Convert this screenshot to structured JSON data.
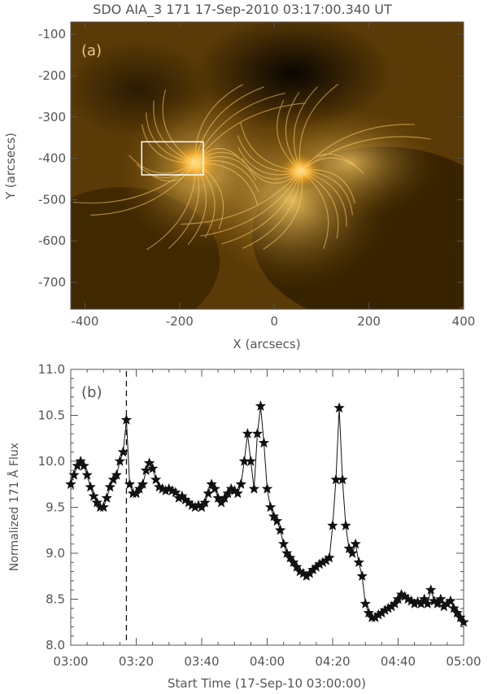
{
  "panel_a": {
    "title": "SDO AIA_3 171 17-Sep-2010 03:17:00.340 UT",
    "label": "(a)",
    "chart_data": {
      "type": "heatmap",
      "image": "solar EUV AIA 171 Å active region, orange colormap",
      "xlabel": "X (arcsecs)",
      "ylabel": "Y (arcsecs)",
      "xlim": [
        -430,
        400
      ],
      "ylim": [
        -765,
        -70
      ],
      "xticks": [
        -400,
        -200,
        0,
        200,
        400
      ],
      "yticks": [
        -100,
        -200,
        -300,
        -400,
        -500,
        -600,
        -700
      ],
      "box": {
        "x": [
          -280,
          -150
        ],
        "y": [
          -440,
          -360
        ]
      }
    },
    "colors": {
      "dark": "#0c0700",
      "mid": "#7a4d00",
      "bright": "#ffc24a",
      "box": "#ffffff"
    }
  },
  "panel_b": {
    "label": "(b)",
    "chart_data": {
      "type": "scatter",
      "marker": "star",
      "xlabel": "Start Time (17-Sep-10 03:00:00)",
      "ylabel": "Normalized 171 Å Flux",
      "xlim": [
        "03:00",
        "05:00"
      ],
      "ylim": [
        8.0,
        11.0
      ],
      "xticks": [
        "03:00",
        "03:20",
        "03:40",
        "04:00",
        "04:20",
        "04:40",
        "05:00"
      ],
      "yticks": [
        "8.0",
        "8.5",
        "9.0",
        "9.5",
        "10.0",
        "10.5",
        "11.0"
      ],
      "vline": "03:17",
      "x": [
        "03:00",
        "03:01",
        "03:02",
        "03:03",
        "03:04",
        "03:05",
        "03:06",
        "03:07",
        "03:08",
        "03:09",
        "03:10",
        "03:11",
        "03:12",
        "03:13",
        "03:14",
        "03:15",
        "03:16",
        "03:17",
        "03:18",
        "03:19",
        "03:20",
        "03:21",
        "03:22",
        "03:23",
        "03:24",
        "03:25",
        "03:26",
        "03:27",
        "03:28",
        "03:29",
        "03:30",
        "03:31",
        "03:32",
        "03:33",
        "03:34",
        "03:35",
        "03:36",
        "03:37",
        "03:38",
        "03:39",
        "03:40",
        "03:41",
        "03:42",
        "03:43",
        "03:44",
        "03:45",
        "03:46",
        "03:47",
        "03:48",
        "03:49",
        "03:50",
        "03:51",
        "03:52",
        "03:53",
        "03:54",
        "03:55",
        "03:56",
        "03:57",
        "03:58",
        "03:59",
        "04:00",
        "04:01",
        "04:02",
        "04:03",
        "04:04",
        "04:05",
        "04:06",
        "04:07",
        "04:08",
        "04:09",
        "04:10",
        "04:11",
        "04:12",
        "04:13",
        "04:14",
        "04:15",
        "04:16",
        "04:17",
        "04:18",
        "04:19",
        "04:20",
        "04:21",
        "04:22",
        "04:23",
        "04:24",
        "04:25",
        "04:26",
        "04:27",
        "04:28",
        "04:29",
        "04:30",
        "04:31",
        "04:32",
        "04:33",
        "04:34",
        "04:35",
        "04:36",
        "04:37",
        "04:38",
        "04:39",
        "04:40",
        "04:41",
        "04:42",
        "04:43",
        "04:44",
        "04:45",
        "04:46",
        "04:47",
        "04:48",
        "04:49",
        "04:50",
        "04:51",
        "04:52",
        "04:53",
        "04:54",
        "04:55",
        "04:56",
        "04:57",
        "04:58",
        "04:59",
        "05:00"
      ],
      "y": [
        9.75,
        9.85,
        9.95,
        10.0,
        9.95,
        9.85,
        9.72,
        9.62,
        9.55,
        9.5,
        9.5,
        9.6,
        9.72,
        9.8,
        9.85,
        10.0,
        10.1,
        10.45,
        9.75,
        9.65,
        9.65,
        9.7,
        9.75,
        9.9,
        9.98,
        9.92,
        9.8,
        9.72,
        9.7,
        9.68,
        9.7,
        9.68,
        9.66,
        9.6,
        9.62,
        9.58,
        9.55,
        9.52,
        9.5,
        9.52,
        9.5,
        9.55,
        9.65,
        9.75,
        9.7,
        9.6,
        9.55,
        9.6,
        9.65,
        9.7,
        9.68,
        9.65,
        9.75,
        10.0,
        10.3,
        10.0,
        9.7,
        10.3,
        10.6,
        10.2,
        9.7,
        9.5,
        9.4,
        9.35,
        9.25,
        9.1,
        9.0,
        8.95,
        8.9,
        8.85,
        8.8,
        8.78,
        8.75,
        8.78,
        8.82,
        8.85,
        8.88,
        8.9,
        8.92,
        8.95,
        9.3,
        9.8,
        10.58,
        9.8,
        9.3,
        9.05,
        9.0,
        9.1,
        8.9,
        8.75,
        8.45,
        8.35,
        8.3,
        8.3,
        8.33,
        8.35,
        8.38,
        8.4,
        8.42,
        8.45,
        8.5,
        8.55,
        8.53,
        8.5,
        8.48,
        8.45,
        8.47,
        8.45,
        8.5,
        8.45,
        8.6,
        8.48,
        8.45,
        8.5,
        8.42,
        8.45,
        8.48,
        8.4,
        8.35,
        8.3,
        8.25
      ]
    }
  }
}
